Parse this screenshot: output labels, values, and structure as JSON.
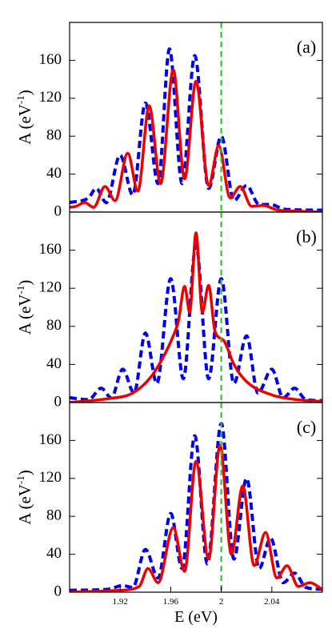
{
  "chart_data": [
    {
      "type": "line",
      "annotation": "(a)",
      "ylabel": [
        "A (eV",
        "-1",
        ")"
      ],
      "xlim": [
        1.88,
        2.08
      ],
      "ylim": [
        0,
        200
      ],
      "yticks": [
        0,
        40,
        80,
        120,
        160
      ],
      "vline": 2,
      "vline_color": "#22cc22",
      "series": [
        {
          "color": "#0000ee",
          "style": "dashed",
          "x": [
            1.88,
            1.895,
            1.901,
            1.909,
            1.92,
            1.93,
            1.94,
            1.95,
            1.959,
            1.969,
            1.979,
            1.99,
            2.0,
            2.01,
            2.02,
            2.03,
            2.039,
            2.05,
            2.08
          ],
          "values": [
            10,
            15,
            25,
            10,
            60,
            18,
            115,
            30,
            172,
            30,
            165,
            25,
            80,
            12,
            28,
            8,
            8,
            3,
            2
          ]
        },
        {
          "color": "#ee0000",
          "style": "solid",
          "x": [
            1.88,
            1.885,
            1.892,
            1.899,
            1.908,
            1.916,
            1.926,
            1.934,
            1.943,
            1.952,
            1.962,
            1.971,
            1.98,
            1.99,
            1.998,
            2.007,
            2.015,
            2.024,
            2.033,
            2.045,
            2.06,
            2.08
          ],
          "values": [
            5,
            6,
            10,
            5,
            27,
            12,
            62,
            22,
            112,
            30,
            150,
            35,
            138,
            28,
            70,
            15,
            27,
            6,
            7,
            2,
            1,
            0
          ]
        }
      ]
    },
    {
      "type": "line",
      "annotation": "(b)",
      "ylabel": [
        "A (eV",
        "-1",
        ")"
      ],
      "xlim": [
        1.88,
        2.08
      ],
      "ylim": [
        0,
        200
      ],
      "yticks": [
        0,
        40,
        80,
        120,
        160
      ],
      "vline": 2,
      "vline_color": "#22cc22",
      "series": [
        {
          "color": "#0000ee",
          "style": "dashed",
          "x": [
            1.88,
            1.895,
            1.905,
            1.913,
            1.922,
            1.931,
            1.94,
            1.949,
            1.96,
            1.97,
            1.98,
            1.99,
            2.0,
            2.01,
            2.02,
            2.029,
            2.04,
            2.049,
            2.058,
            2.067,
            2.08
          ],
          "values": [
            5,
            3,
            15,
            5,
            35,
            10,
            73,
            20,
            130,
            25,
            165,
            25,
            130,
            20,
            70,
            10,
            35,
            5,
            15,
            3,
            2
          ]
        },
        {
          "color": "#ee0000",
          "style": "solid",
          "x": [
            1.88,
            1.91,
            1.93,
            1.945,
            1.955,
            1.962,
            1.966,
            1.971,
            1.975,
            1.98,
            1.985,
            1.99,
            1.995,
            2.002,
            2.01,
            2.02,
            2.04,
            2.06,
            2.08
          ],
          "values": [
            0,
            4,
            10,
            28,
            50,
            70,
            85,
            122,
            95,
            178,
            95,
            123,
            75,
            65,
            40,
            22,
            8,
            3,
            1
          ]
        }
      ]
    },
    {
      "type": "line",
      "annotation": "(c)",
      "ylabel": [
        "A (eV",
        "-1",
        ")"
      ],
      "xlabel": "E (eV)",
      "xlim": [
        1.88,
        2.08
      ],
      "xticks": [
        1.92,
        1.96,
        2,
        2.04
      ],
      "ylim": [
        0,
        200
      ],
      "yticks": [
        0,
        40,
        80,
        120,
        160
      ],
      "vline": 2,
      "vline_color": "#22cc22",
      "series": [
        {
          "color": "#0000ee",
          "style": "dashed",
          "x": [
            1.88,
            1.91,
            1.922,
            1.93,
            1.94,
            1.95,
            1.96,
            1.969,
            1.979,
            1.989,
            2.0,
            2.01,
            2.02,
            2.03,
            2.039,
            2.049,
            2.058,
            2.067,
            2.08
          ],
          "values": [
            2,
            3,
            7,
            5,
            45,
            15,
            83,
            25,
            165,
            30,
            178,
            35,
            120,
            25,
            57,
            10,
            20,
            5,
            3
          ]
        },
        {
          "color": "#ee0000",
          "style": "solid",
          "x": [
            1.88,
            1.92,
            1.935,
            1.942,
            1.95,
            1.962,
            1.971,
            1.98,
            1.99,
            1.999,
            2.008,
            2.017,
            2.026,
            2.035,
            2.044,
            2.052,
            2.061,
            2.07,
            2.08
          ],
          "values": [
            0,
            2,
            6,
            25,
            10,
            68,
            22,
            138,
            35,
            155,
            40,
            112,
            28,
            63,
            15,
            28,
            6,
            10,
            3
          ]
        }
      ]
    }
  ]
}
